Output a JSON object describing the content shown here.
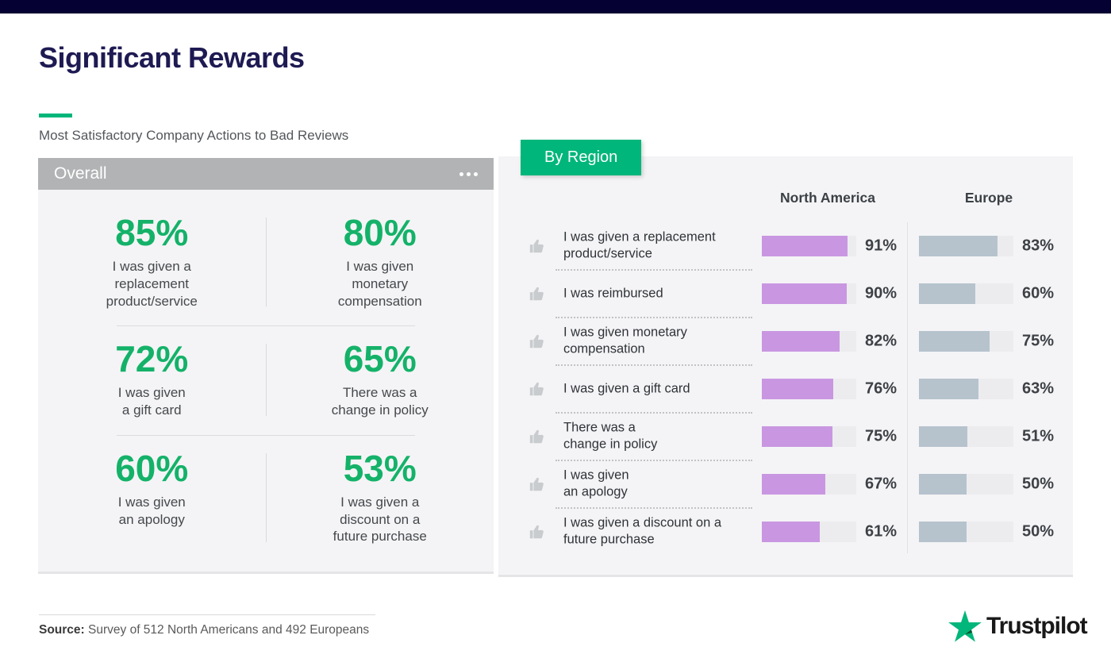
{
  "page": {
    "title": "Significant Rewards",
    "subtitle": "Most Satisfactory Company Actions to Bad Reviews",
    "source_label": "Source:",
    "source_text": "Survey of 512 North Americans and 492 Europeans"
  },
  "colors": {
    "accent_green": "#00b67a",
    "stat_green": "#14b269",
    "top_bar_navy": "#050233",
    "title_navy": "#1e1a52",
    "na_bar_fill": "#c997e1",
    "eu_bar_fill": "#b6c3cd",
    "bar_track": "#ececee",
    "panel_bg": "#f4f4f6",
    "panel_header_gray": "#b1b3b5"
  },
  "overall_panel": {
    "header": "Overall",
    "menu_icon": "ellipsis-icon",
    "stats": [
      {
        "value": "85%",
        "label": "I was given a\nreplacement\nproduct/service"
      },
      {
        "value": "80%",
        "label": "I was given\nmonetary\ncompensation"
      },
      {
        "value": "72%",
        "label": "I was given\na gift card"
      },
      {
        "value": "65%",
        "label": "There was a\nchange in policy"
      },
      {
        "value": "60%",
        "label": "I was given\nan apology"
      },
      {
        "value": "53%",
        "label": "I was given a\ndiscount on a\nfuture purchase"
      }
    ]
  },
  "region_panel": {
    "tab": "By Region",
    "columns": [
      "North America",
      "Europe"
    ],
    "row_icon": "thumbs-up-icon",
    "rows": [
      {
        "label": "I was given a replacement\nproduct/service",
        "na": 91,
        "eu": 83
      },
      {
        "label": "I was reimbursed",
        "na": 90,
        "eu": 60
      },
      {
        "label": "I was given monetary\ncompensation",
        "na": 82,
        "eu": 75
      },
      {
        "label": "I was given a gift card",
        "na": 76,
        "eu": 63
      },
      {
        "label": "There was a\nchange in policy",
        "na": 75,
        "eu": 51
      },
      {
        "label": "I was given\nan apology",
        "na": 67,
        "eu": 50
      },
      {
        "label": "I was given a discount on a\nfuture purchase",
        "na": 61,
        "eu": 50
      }
    ]
  },
  "logo": {
    "text": "Trustpilot",
    "icon": "trustpilot-star-icon"
  },
  "chart_data": [
    {
      "type": "bar",
      "title": "Overall",
      "subtitle": "Most Satisfactory Company Actions to Bad Reviews",
      "categories": [
        "I was given a replacement product/service",
        "I was given monetary compensation",
        "I was given a gift card",
        "There was a change in policy",
        "I was given an apology",
        "I was given a discount on a future purchase"
      ],
      "values": [
        85,
        80,
        72,
        65,
        60,
        53
      ],
      "unit": "%"
    },
    {
      "type": "bar",
      "title": "By Region",
      "categories": [
        "I was given a replacement product/service",
        "I was reimbursed",
        "I was given monetary compensation",
        "I was given a gift card",
        "There was a change in policy",
        "I was given an apology",
        "I was given a discount on a future purchase"
      ],
      "series": [
        {
          "name": "North America",
          "values": [
            91,
            90,
            82,
            76,
            75,
            67,
            61
          ]
        },
        {
          "name": "Europe",
          "values": [
            83,
            60,
            75,
            63,
            51,
            50,
            50
          ]
        }
      ],
      "xlim": [
        0,
        100
      ],
      "unit": "%",
      "orientation": "horizontal",
      "legend_position": "top"
    }
  ]
}
